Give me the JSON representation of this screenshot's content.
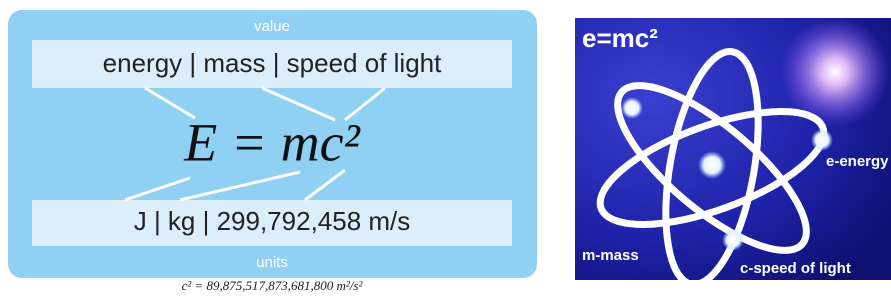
{
  "left": {
    "value_label": "value",
    "top_band": "energy | mass | speed of light",
    "formula": "E = mc²",
    "bottom_band": "J | kg | 299,792,458 m/s",
    "units_label": "units",
    "caption": "c² = 89,875,517,873,681,800 m²/s²"
  },
  "right": {
    "title": "e=mc²",
    "energy_label": "e-energy",
    "mass_label": "m-mass",
    "light_label": "c-speed of light"
  }
}
